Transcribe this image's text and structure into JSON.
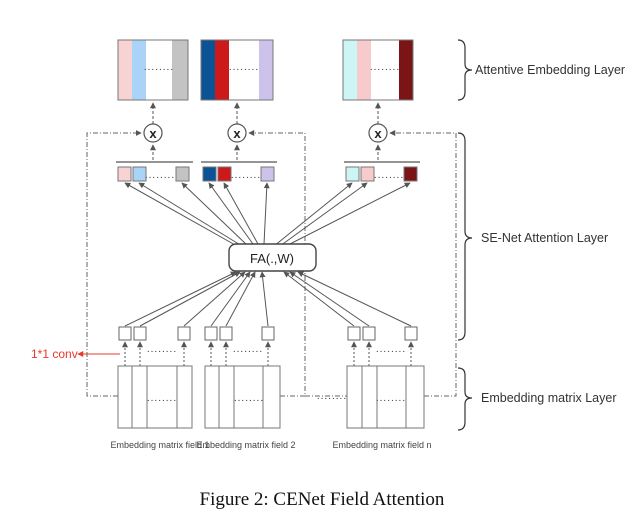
{
  "caption": "Figure 2: CENet Field Attention",
  "layers": {
    "attentive": "Attentive Embedding Layer",
    "senet": "SE-Net Attention Layer",
    "embedding": "Embedding matrix Layer"
  },
  "function_label": "FA(.,W)",
  "conv_label": "1*1 conv",
  "multiply_symbol": "x",
  "ellipsis": "........",
  "fields": [
    "Embedding matrix field 1",
    "Embedding matrix field 2",
    "Embedding matrix field n"
  ],
  "colors": {
    "field1": [
      "#f7d3d3",
      "#a9d3f7",
      "#ffffff",
      "#c3c3c3"
    ],
    "field2": [
      "#0b5394",
      "#cc1a1a",
      "#ffffff",
      "#cdc3ea"
    ],
    "field3": [
      "#cdf5f5",
      "#f7cbcb",
      "#ffffff",
      "#7b1414"
    ],
    "accent": "#e8392b"
  }
}
